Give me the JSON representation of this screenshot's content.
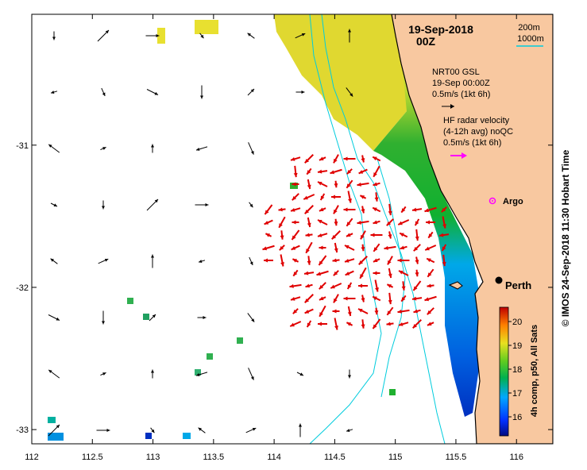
{
  "map": {
    "date_title": "19-Sep-2018",
    "time_title": "00Z",
    "isobath_labels": [
      "200m",
      "1000m"
    ],
    "model_legend": {
      "lines": [
        "NRT00 GSL",
        "19-Sep 00:00Z",
        "0.5m/s (1kt 6h)"
      ]
    },
    "radar_legend": {
      "lines": [
        "HF radar velocity",
        "(4-12h avg) noQC",
        "0.5m/s (1kt 6h)"
      ]
    },
    "argo_label": "Argo",
    "city_label": "Perth",
    "x_axis": {
      "ticks": [
        112,
        112.5,
        113,
        113.5,
        114,
        114.5,
        115,
        115.5,
        116
      ],
      "labels": [
        "112",
        "112.5",
        "113",
        "113.5",
        "114",
        "114.5",
        "115",
        "115.5",
        "116"
      ],
      "range": [
        112,
        116.3
      ]
    },
    "y_axis": {
      "ticks": [
        -31,
        -32,
        -33
      ],
      "labels": [
        "-31",
        "-32",
        "-33"
      ],
      "range": [
        -33.1,
        -30.08
      ]
    },
    "colorbar": {
      "ticks": [
        16,
        17,
        18,
        19,
        20
      ],
      "range": [
        15.2,
        20.6
      ],
      "label": "4h comp, p50, All Sats"
    },
    "side_caption": "© IMOS 24-Sep-2018 11:30 Hobart Time",
    "colors": {
      "land": "#f8c8a0",
      "isobath": "#00ccdd",
      "radar_arrow": "#e00000",
      "model_arrow": "#000000",
      "argo": "#ff00ff",
      "coastline": "#000000"
    }
  }
}
